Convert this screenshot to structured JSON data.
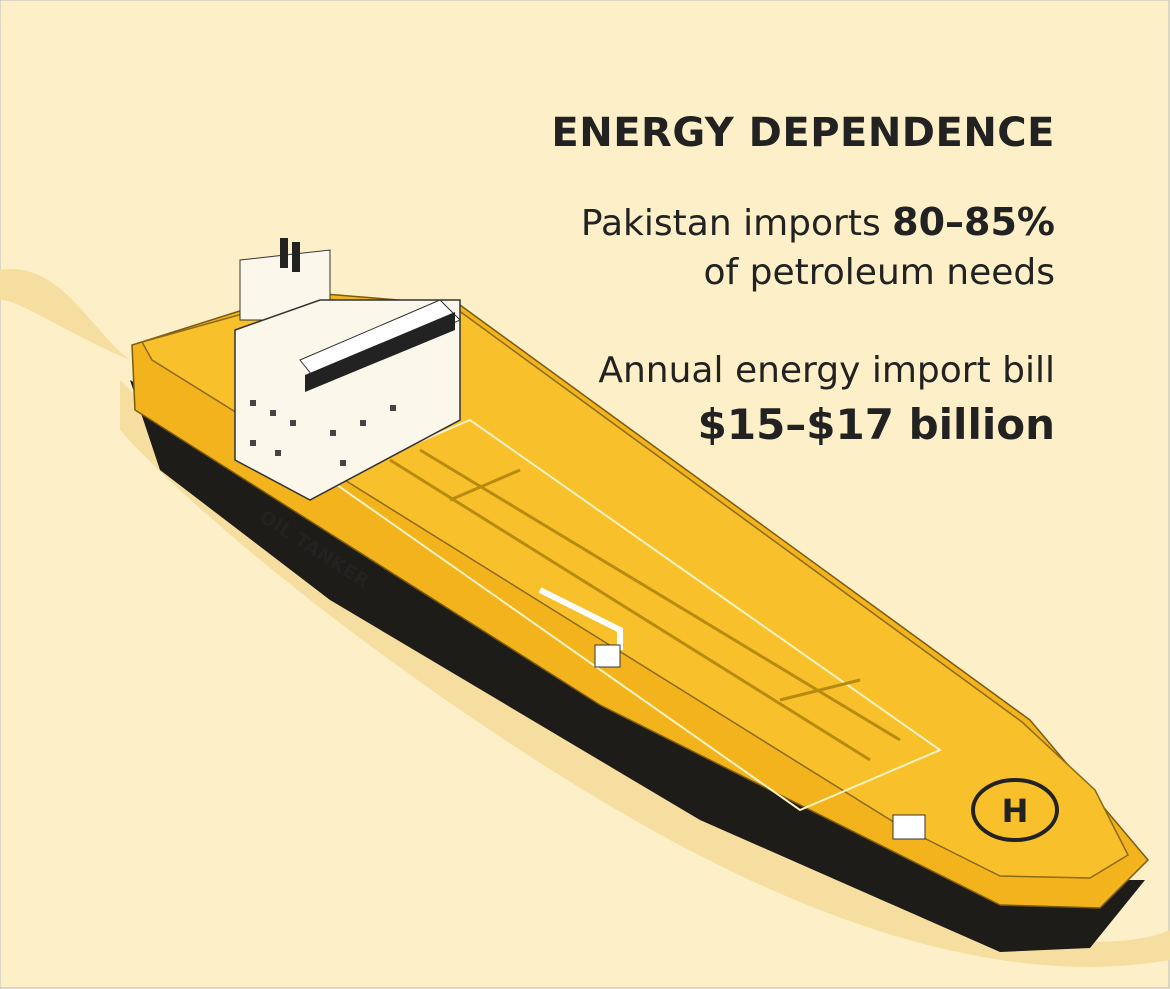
{
  "infographic": {
    "title": "ENERGY DEPENDENCE",
    "stat_1": {
      "prefix": "Pakistan imports",
      "value": "80–85%",
      "suffix": "of petroleum needs"
    },
    "stat_2": {
      "label": "Annual energy import bill",
      "value": "$15–$17 billion"
    },
    "illustration": {
      "hull_label": "OIL TANKER",
      "helipad_label": "H"
    }
  }
}
